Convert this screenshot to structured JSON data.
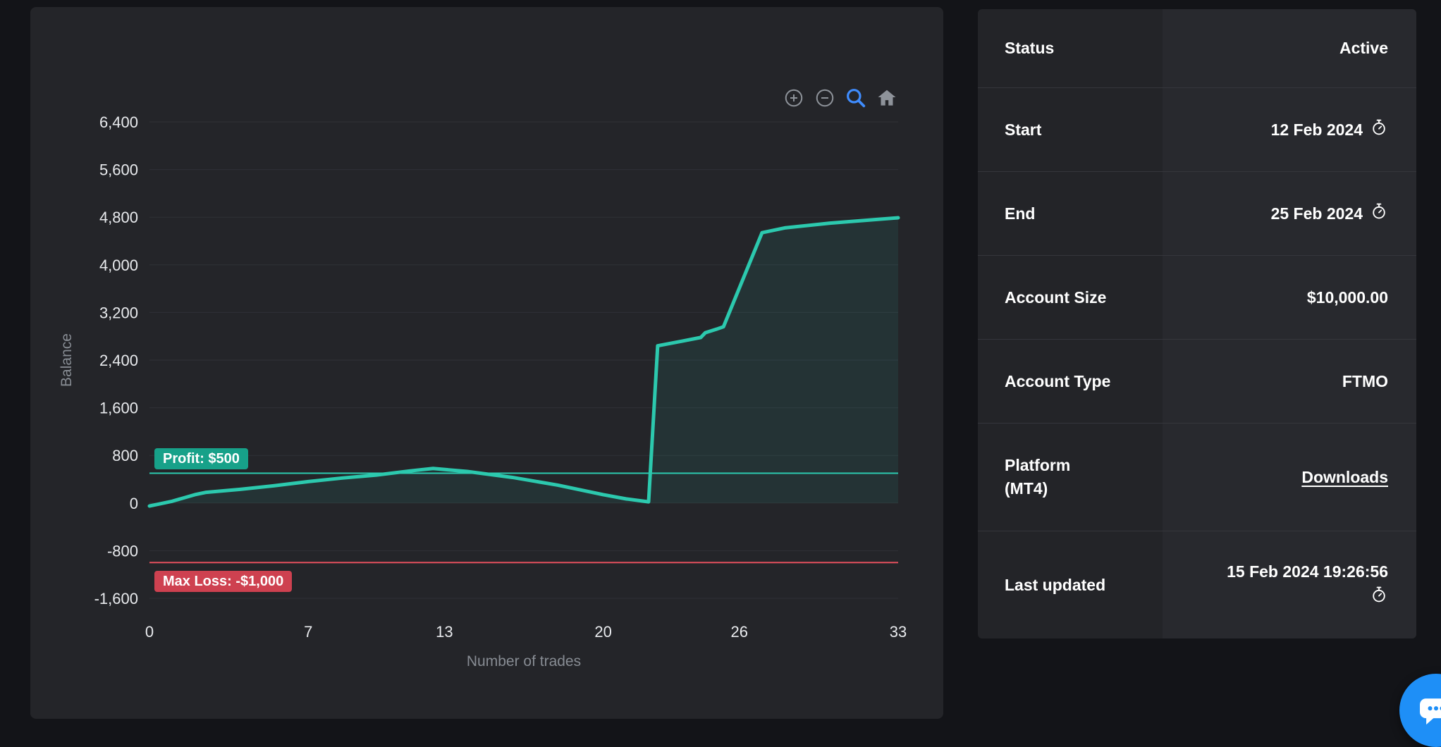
{
  "chart_data": {
    "type": "line",
    "title": "",
    "xlabel": "Number of trades",
    "ylabel": "Balance",
    "x": [
      0,
      1,
      2,
      2.5,
      4,
      5.5,
      7,
      8.5,
      10,
      11.5,
      12.5,
      14,
      16,
      18,
      20,
      21,
      22,
      22.4,
      23.5,
      24.3,
      24.5,
      25,
      25.3,
      27,
      28,
      30,
      33
    ],
    "y": [
      -50,
      30,
      140,
      180,
      230,
      290,
      360,
      420,
      470,
      540,
      580,
      530,
      430,
      300,
      140,
      70,
      20,
      2640,
      2720,
      2780,
      2860,
      2920,
      2960,
      4540,
      4620,
      4700,
      4790
    ],
    "xticks": [
      0,
      7,
      13,
      20,
      26,
      33
    ],
    "yticks": [
      -1600,
      -800,
      0,
      800,
      1600,
      2400,
      3200,
      4000,
      4800,
      5600,
      6400
    ],
    "ytick_labels": [
      "-1,600",
      "-800",
      "0",
      "800",
      "1,600",
      "2,400",
      "3,200",
      "4,000",
      "4,800",
      "5,600",
      "6,400"
    ],
    "xlim": [
      0,
      33
    ],
    "ylim": [
      -1600,
      6400
    ],
    "grid": true,
    "legend": false,
    "line_color": "#2cc9ae",
    "fill_color": "rgba(44,201,174,0.09)",
    "grid_color": "#2f3137",
    "reference_lines": [
      {
        "label": "Profit: $500",
        "value": 500,
        "line_color": "#2cc9ae",
        "badge_color": "#17a189"
      },
      {
        "label": "Max Loss: -$1,000",
        "value": -1000,
        "line_color": "#e4505e",
        "badge_color": "#ce4150"
      }
    ],
    "toolbar_icons": [
      "zoom-in",
      "zoom-out",
      "zoom-select",
      "reset-axes-home"
    ]
  },
  "details": {
    "rows": [
      {
        "label": "Status",
        "value": "Active"
      },
      {
        "label": "Start",
        "value": "12 Feb 2024"
      },
      {
        "label": "End",
        "value": "25 Feb 2024"
      },
      {
        "label": "Account Size",
        "value": "$10,000.00"
      },
      {
        "label": "Account Type",
        "value": "FTMO"
      },
      {
        "label": "Platform",
        "sublabel": "(MT4)",
        "value": "Downloads"
      },
      {
        "label": "Last updated",
        "value": "15 Feb 2024 19:26:56"
      }
    ]
  }
}
